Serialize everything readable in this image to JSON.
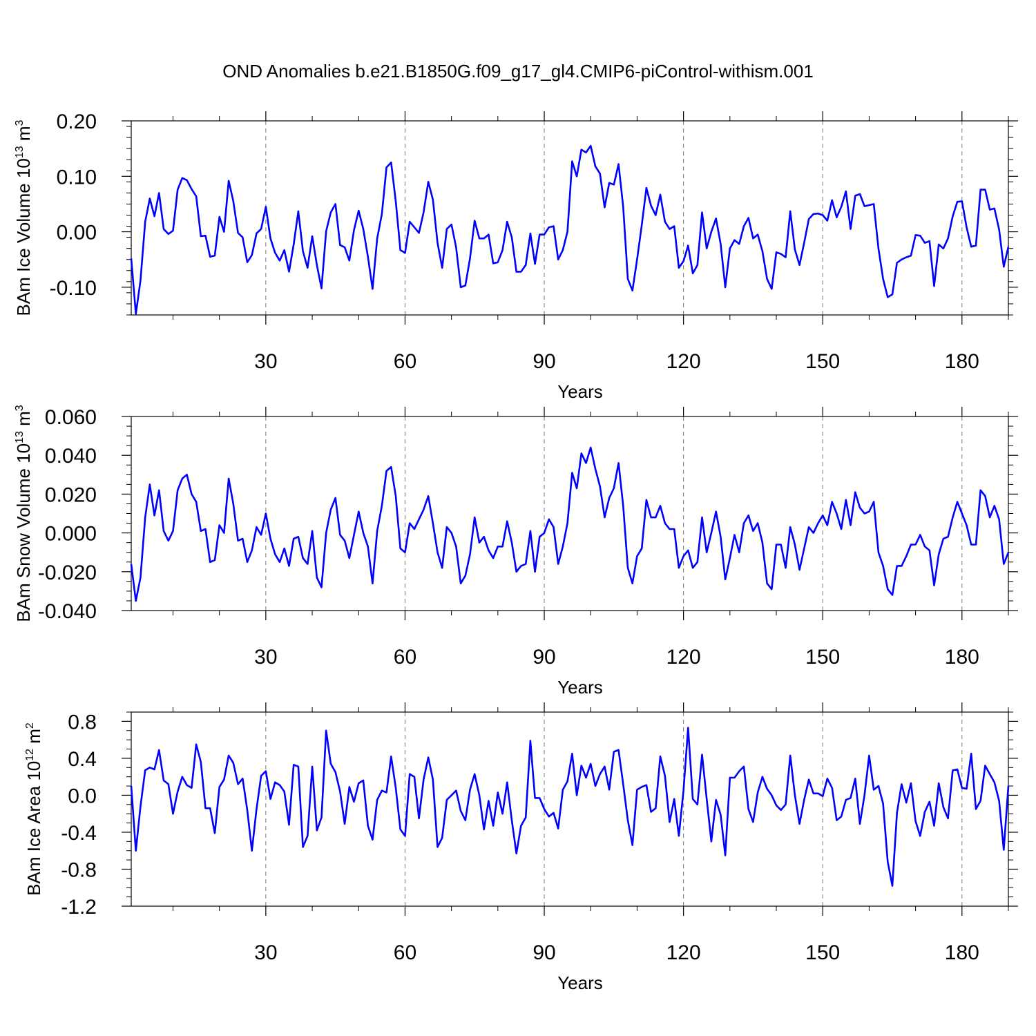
{
  "title": "OND Anomalies b.e21.B1850G.f09_g17_gl4.CMIP6-piControl-withism.001",
  "colors": {
    "line": "#0000ff",
    "axis": "#000000",
    "grid": "#777777"
  },
  "chart_data": [
    {
      "type": "line",
      "ylabel": "BAm Ice Volume 10",
      "yexp": "13",
      "yunit": "m",
      "yunit_exp": "3",
      "xlabel": "Years",
      "xlim": [
        1,
        190
      ],
      "ylim": [
        -0.15,
        0.2
      ],
      "xticks": [
        30,
        60,
        90,
        120,
        150,
        180
      ],
      "xtick_labels": [
        "30",
        "60",
        "90",
        "120",
        "150",
        "180"
      ],
      "yticks": [
        -0.1,
        0.0,
        0.1,
        0.2
      ],
      "ytick_labels": [
        "-0.10",
        "0.00",
        "0.10",
        "0.20"
      ],
      "minor_x": 10,
      "minor_y": 0.02,
      "x_start": 1,
      "values": [
        -0.048,
        -0.148,
        -0.088,
        0.018,
        0.06,
        0.028,
        0.07,
        0.005,
        -0.004,
        0.002,
        0.076,
        0.097,
        0.093,
        0.077,
        0.064,
        -0.008,
        -0.007,
        -0.045,
        -0.043,
        0.027,
        0.0,
        0.092,
        0.055,
        -0.002,
        -0.01,
        -0.055,
        -0.042,
        -0.003,
        0.005,
        0.045,
        -0.012,
        -0.038,
        -0.052,
        -0.033,
        -0.072,
        -0.023,
        0.037,
        -0.035,
        -0.065,
        -0.008,
        -0.06,
        -0.102,
        0.001,
        0.035,
        0.05,
        -0.024,
        -0.028,
        -0.052,
        0.003,
        0.038,
        0.005,
        -0.045,
        -0.103,
        -0.012,
        0.032,
        0.116,
        0.125,
        0.055,
        -0.033,
        -0.038,
        0.018,
        0.008,
        -0.002,
        0.035,
        0.09,
        0.058,
        -0.02,
        -0.065,
        0.005,
        0.013,
        -0.028,
        -0.1,
        -0.097,
        -0.048,
        0.02,
        -0.012,
        -0.012,
        -0.005,
        -0.057,
        -0.055,
        -0.033,
        0.018,
        -0.01,
        -0.072,
        -0.072,
        -0.06,
        -0.003,
        -0.058,
        -0.005,
        -0.005,
        0.008,
        0.01,
        -0.05,
        -0.033,
        0.0,
        0.127,
        0.1,
        0.148,
        0.143,
        0.155,
        0.118,
        0.105,
        0.044,
        0.088,
        0.085,
        0.122,
        0.045,
        -0.085,
        -0.106,
        -0.05,
        0.012,
        0.079,
        0.047,
        0.03,
        0.067,
        0.018,
        0.005,
        0.01,
        -0.065,
        -0.053,
        -0.025,
        -0.075,
        -0.06,
        0.035,
        -0.03,
        0.0,
        0.024,
        -0.022,
        -0.1,
        -0.03,
        -0.015,
        -0.022,
        0.01,
        0.025,
        -0.012,
        -0.005,
        -0.035,
        -0.085,
        -0.103,
        -0.037,
        -0.04,
        -0.046,
        0.037,
        -0.032,
        -0.06,
        -0.02,
        0.023,
        0.032,
        0.033,
        0.03,
        0.02,
        0.057,
        0.026,
        0.045,
        0.073,
        0.005,
        0.065,
        0.068,
        0.046,
        0.048,
        0.05,
        -0.03,
        -0.085,
        -0.118,
        -0.113,
        -0.056,
        -0.05,
        -0.046,
        -0.043,
        -0.006,
        -0.007,
        -0.02,
        -0.017,
        -0.098,
        -0.023,
        -0.03,
        -0.012,
        0.028,
        0.054,
        0.055,
        0.008,
        -0.027,
        -0.025,
        0.076,
        0.076,
        0.04,
        0.042,
        0.004,
        -0.063,
        -0.027
      ]
    },
    {
      "type": "line",
      "ylabel": "BAm Snow Volume 10",
      "yexp": "13",
      "yunit": "m",
      "yunit_exp": "3",
      "xlabel": "Years",
      "xlim": [
        1,
        190
      ],
      "ylim": [
        -0.04,
        0.06
      ],
      "xticks": [
        30,
        60,
        90,
        120,
        150,
        180
      ],
      "xtick_labels": [
        "30",
        "60",
        "90",
        "120",
        "150",
        "180"
      ],
      "yticks": [
        -0.04,
        -0.02,
        0.0,
        0.02,
        0.04,
        0.06
      ],
      "ytick_labels": [
        "-0.040",
        "-0.020",
        "0.000",
        "0.020",
        "0.040",
        "0.060"
      ],
      "minor_x": 10,
      "minor_y": 0.005,
      "x_start": 1,
      "values": [
        -0.016,
        -0.035,
        -0.023,
        0.008,
        0.025,
        0.009,
        0.022,
        0.001,
        -0.004,
        0.001,
        0.022,
        0.028,
        0.03,
        0.02,
        0.016,
        0.001,
        0.002,
        -0.015,
        -0.014,
        0.004,
        0.0,
        0.028,
        0.015,
        -0.004,
        -0.003,
        -0.015,
        -0.009,
        0.003,
        -0.001,
        0.01,
        -0.003,
        -0.011,
        -0.015,
        -0.008,
        -0.017,
        -0.003,
        -0.002,
        -0.013,
        -0.016,
        0.001,
        -0.023,
        -0.028,
        0.0,
        0.012,
        0.018,
        -0.001,
        -0.004,
        -0.013,
        -0.001,
        0.011,
        0.0,
        -0.007,
        -0.026,
        0.001,
        0.014,
        0.032,
        0.034,
        0.019,
        -0.008,
        -0.01,
        0.005,
        0.002,
        0.007,
        0.012,
        0.019,
        0.005,
        -0.01,
        -0.018,
        0.003,
        0.0,
        -0.007,
        -0.026,
        -0.022,
        -0.011,
        0.008,
        -0.005,
        -0.002,
        -0.009,
        -0.013,
        -0.007,
        -0.007,
        0.006,
        -0.005,
        -0.02,
        -0.017,
        -0.016,
        0.001,
        -0.02,
        -0.002,
        0.0,
        0.007,
        0.003,
        -0.016,
        -0.007,
        0.005,
        0.031,
        0.023,
        0.041,
        0.036,
        0.044,
        0.033,
        0.024,
        0.008,
        0.018,
        0.023,
        0.036,
        0.014,
        -0.018,
        -0.026,
        -0.012,
        -0.008,
        0.017,
        0.008,
        0.008,
        0.014,
        0.005,
        0.002,
        0.002,
        -0.018,
        -0.012,
        -0.009,
        -0.018,
        -0.015,
        0.008,
        -0.01,
        0.0,
        0.011,
        -0.002,
        -0.024,
        -0.013,
        -0.001,
        -0.01,
        0.005,
        0.009,
        0.001,
        0.005,
        -0.005,
        -0.026,
        -0.029,
        -0.006,
        -0.006,
        -0.018,
        0.003,
        -0.006,
        -0.019,
        -0.008,
        0.003,
        0.0,
        0.005,
        0.009,
        0.004,
        0.016,
        0.01,
        0.002,
        0.017,
        0.004,
        0.021,
        0.013,
        0.01,
        0.011,
        0.016,
        -0.01,
        -0.017,
        -0.029,
        -0.032,
        -0.017,
        -0.017,
        -0.012,
        -0.006,
        -0.006,
        -0.001,
        -0.007,
        -0.009,
        -0.027,
        -0.011,
        -0.003,
        -0.002,
        0.008,
        0.016,
        0.01,
        0.004,
        -0.006,
        -0.006,
        0.022,
        0.019,
        0.008,
        0.014,
        0.007,
        -0.016,
        -0.01
      ]
    },
    {
      "type": "line",
      "ylabel": "BAm Ice Area 10",
      "yexp": "12",
      "yunit": "m",
      "yunit_exp": "2",
      "xlabel": "Years",
      "xlim": [
        1,
        190
      ],
      "ylim": [
        -1.2,
        0.9
      ],
      "xticks": [
        30,
        60,
        90,
        120,
        150,
        180
      ],
      "xtick_labels": [
        "30",
        "60",
        "90",
        "120",
        "150",
        "180"
      ],
      "yticks": [
        -1.2,
        -0.8,
        -0.4,
        0.0,
        0.4,
        0.8
      ],
      "ytick_labels": [
        "-1.2",
        "-0.8",
        "-0.4",
        "0.0",
        "0.4",
        "0.8"
      ],
      "minor_x": 10,
      "minor_y": 0.1,
      "x_start": 1,
      "values": [
        0.1,
        -0.6,
        -0.12,
        0.27,
        0.3,
        0.28,
        0.49,
        0.16,
        0.12,
        -0.2,
        0.04,
        0.2,
        0.11,
        0.08,
        0.55,
        0.36,
        -0.14,
        -0.14,
        -0.41,
        0.09,
        0.17,
        0.43,
        0.35,
        0.12,
        0.18,
        -0.16,
        -0.6,
        -0.15,
        0.21,
        0.26,
        -0.04,
        0.14,
        0.11,
        0.04,
        -0.32,
        0.33,
        0.31,
        -0.56,
        -0.44,
        0.31,
        -0.38,
        -0.24,
        0.7,
        0.34,
        0.25,
        0.04,
        -0.31,
        0.09,
        -0.07,
        0.13,
        0.16,
        -0.33,
        -0.48,
        -0.05,
        0.05,
        0.03,
        0.42,
        0.08,
        -0.37,
        -0.44,
        0.23,
        0.2,
        -0.25,
        0.17,
        0.41,
        0.17,
        -0.56,
        -0.46,
        -0.05,
        0.0,
        0.05,
        -0.17,
        -0.27,
        0.06,
        0.23,
        0.0,
        -0.37,
        -0.06,
        -0.33,
        0.03,
        -0.2,
        0.14,
        -0.27,
        -0.63,
        -0.33,
        -0.24,
        0.59,
        -0.03,
        -0.03,
        -0.15,
        -0.23,
        -0.19,
        -0.36,
        0.06,
        0.15,
        0.45,
        0.0,
        0.32,
        0.19,
        0.34,
        0.1,
        0.23,
        0.31,
        0.06,
        0.47,
        0.49,
        0.12,
        -0.27,
        -0.54,
        0.06,
        0.09,
        0.11,
        -0.18,
        -0.14,
        0.42,
        0.21,
        -0.29,
        -0.04,
        -0.44,
        0.05,
        0.73,
        -0.04,
        -0.1,
        0.44,
        -0.04,
        -0.5,
        -0.05,
        -0.21,
        -0.65,
        0.19,
        0.19,
        0.26,
        0.31,
        -0.15,
        -0.29,
        0.03,
        0.2,
        0.07,
        0.0,
        -0.11,
        -0.16,
        -0.1,
        0.43,
        0.0,
        -0.31,
        -0.05,
        0.17,
        0.02,
        0.02,
        -0.01,
        0.18,
        0.08,
        -0.27,
        -0.23,
        -0.05,
        -0.03,
        0.18,
        -0.31,
        0.0,
        0.43,
        0.06,
        0.1,
        -0.09,
        -0.72,
        -0.98,
        -0.19,
        0.12,
        -0.08,
        0.13,
        -0.28,
        -0.44,
        -0.18,
        -0.07,
        -0.33,
        0.13,
        -0.13,
        -0.25,
        0.27,
        0.28,
        0.08,
        0.07,
        0.45,
        -0.15,
        -0.06,
        0.32,
        0.23,
        0.14,
        -0.06,
        -0.59,
        0.1
      ]
    }
  ]
}
